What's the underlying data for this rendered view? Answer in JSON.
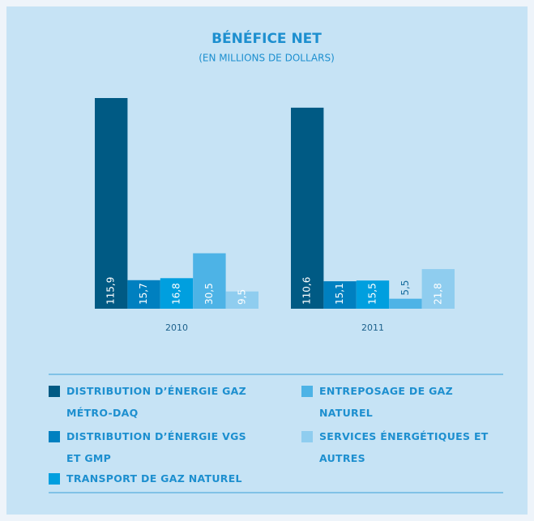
{
  "chart_data": {
    "type": "bar",
    "title": "BÉNÉFICE NET",
    "subtitle": "(EN MILLIONS DE DOLLARS)",
    "categories": [
      "2010",
      "2011"
    ],
    "series": [
      {
        "name": "DISTRIBUTION D’ÉNERGIE GAZ MÉTRO-DAQ",
        "color": "#005a84",
        "values": [
          115.9,
          110.6
        ],
        "value_labels": [
          "115,9",
          "110,6"
        ]
      },
      {
        "name": "DISTRIBUTION D’ÉNERGIE VGS ET GMP",
        "color": "#0080c0",
        "values": [
          15.7,
          15.1
        ],
        "value_labels": [
          "15,7",
          "15,1"
        ]
      },
      {
        "name": "TRANSPORT DE GAZ NATUREL",
        "color": "#009fdf",
        "values": [
          16.8,
          15.5
        ],
        "value_labels": [
          "16,8",
          "15,5"
        ]
      },
      {
        "name": "ENTREPOSAGE DE GAZ NATUREL",
        "color": "#4db3e6",
        "values": [
          30.5,
          5.5
        ],
        "value_labels": [
          "30,5",
          "5,5"
        ]
      },
      {
        "name": "SERVICES ÉNERGÉTIQUES ET AUTRES",
        "color": "#8fcdef",
        "values": [
          9.5,
          21.8
        ],
        "value_labels": [
          "9,5",
          "21,8"
        ]
      }
    ]
  }
}
